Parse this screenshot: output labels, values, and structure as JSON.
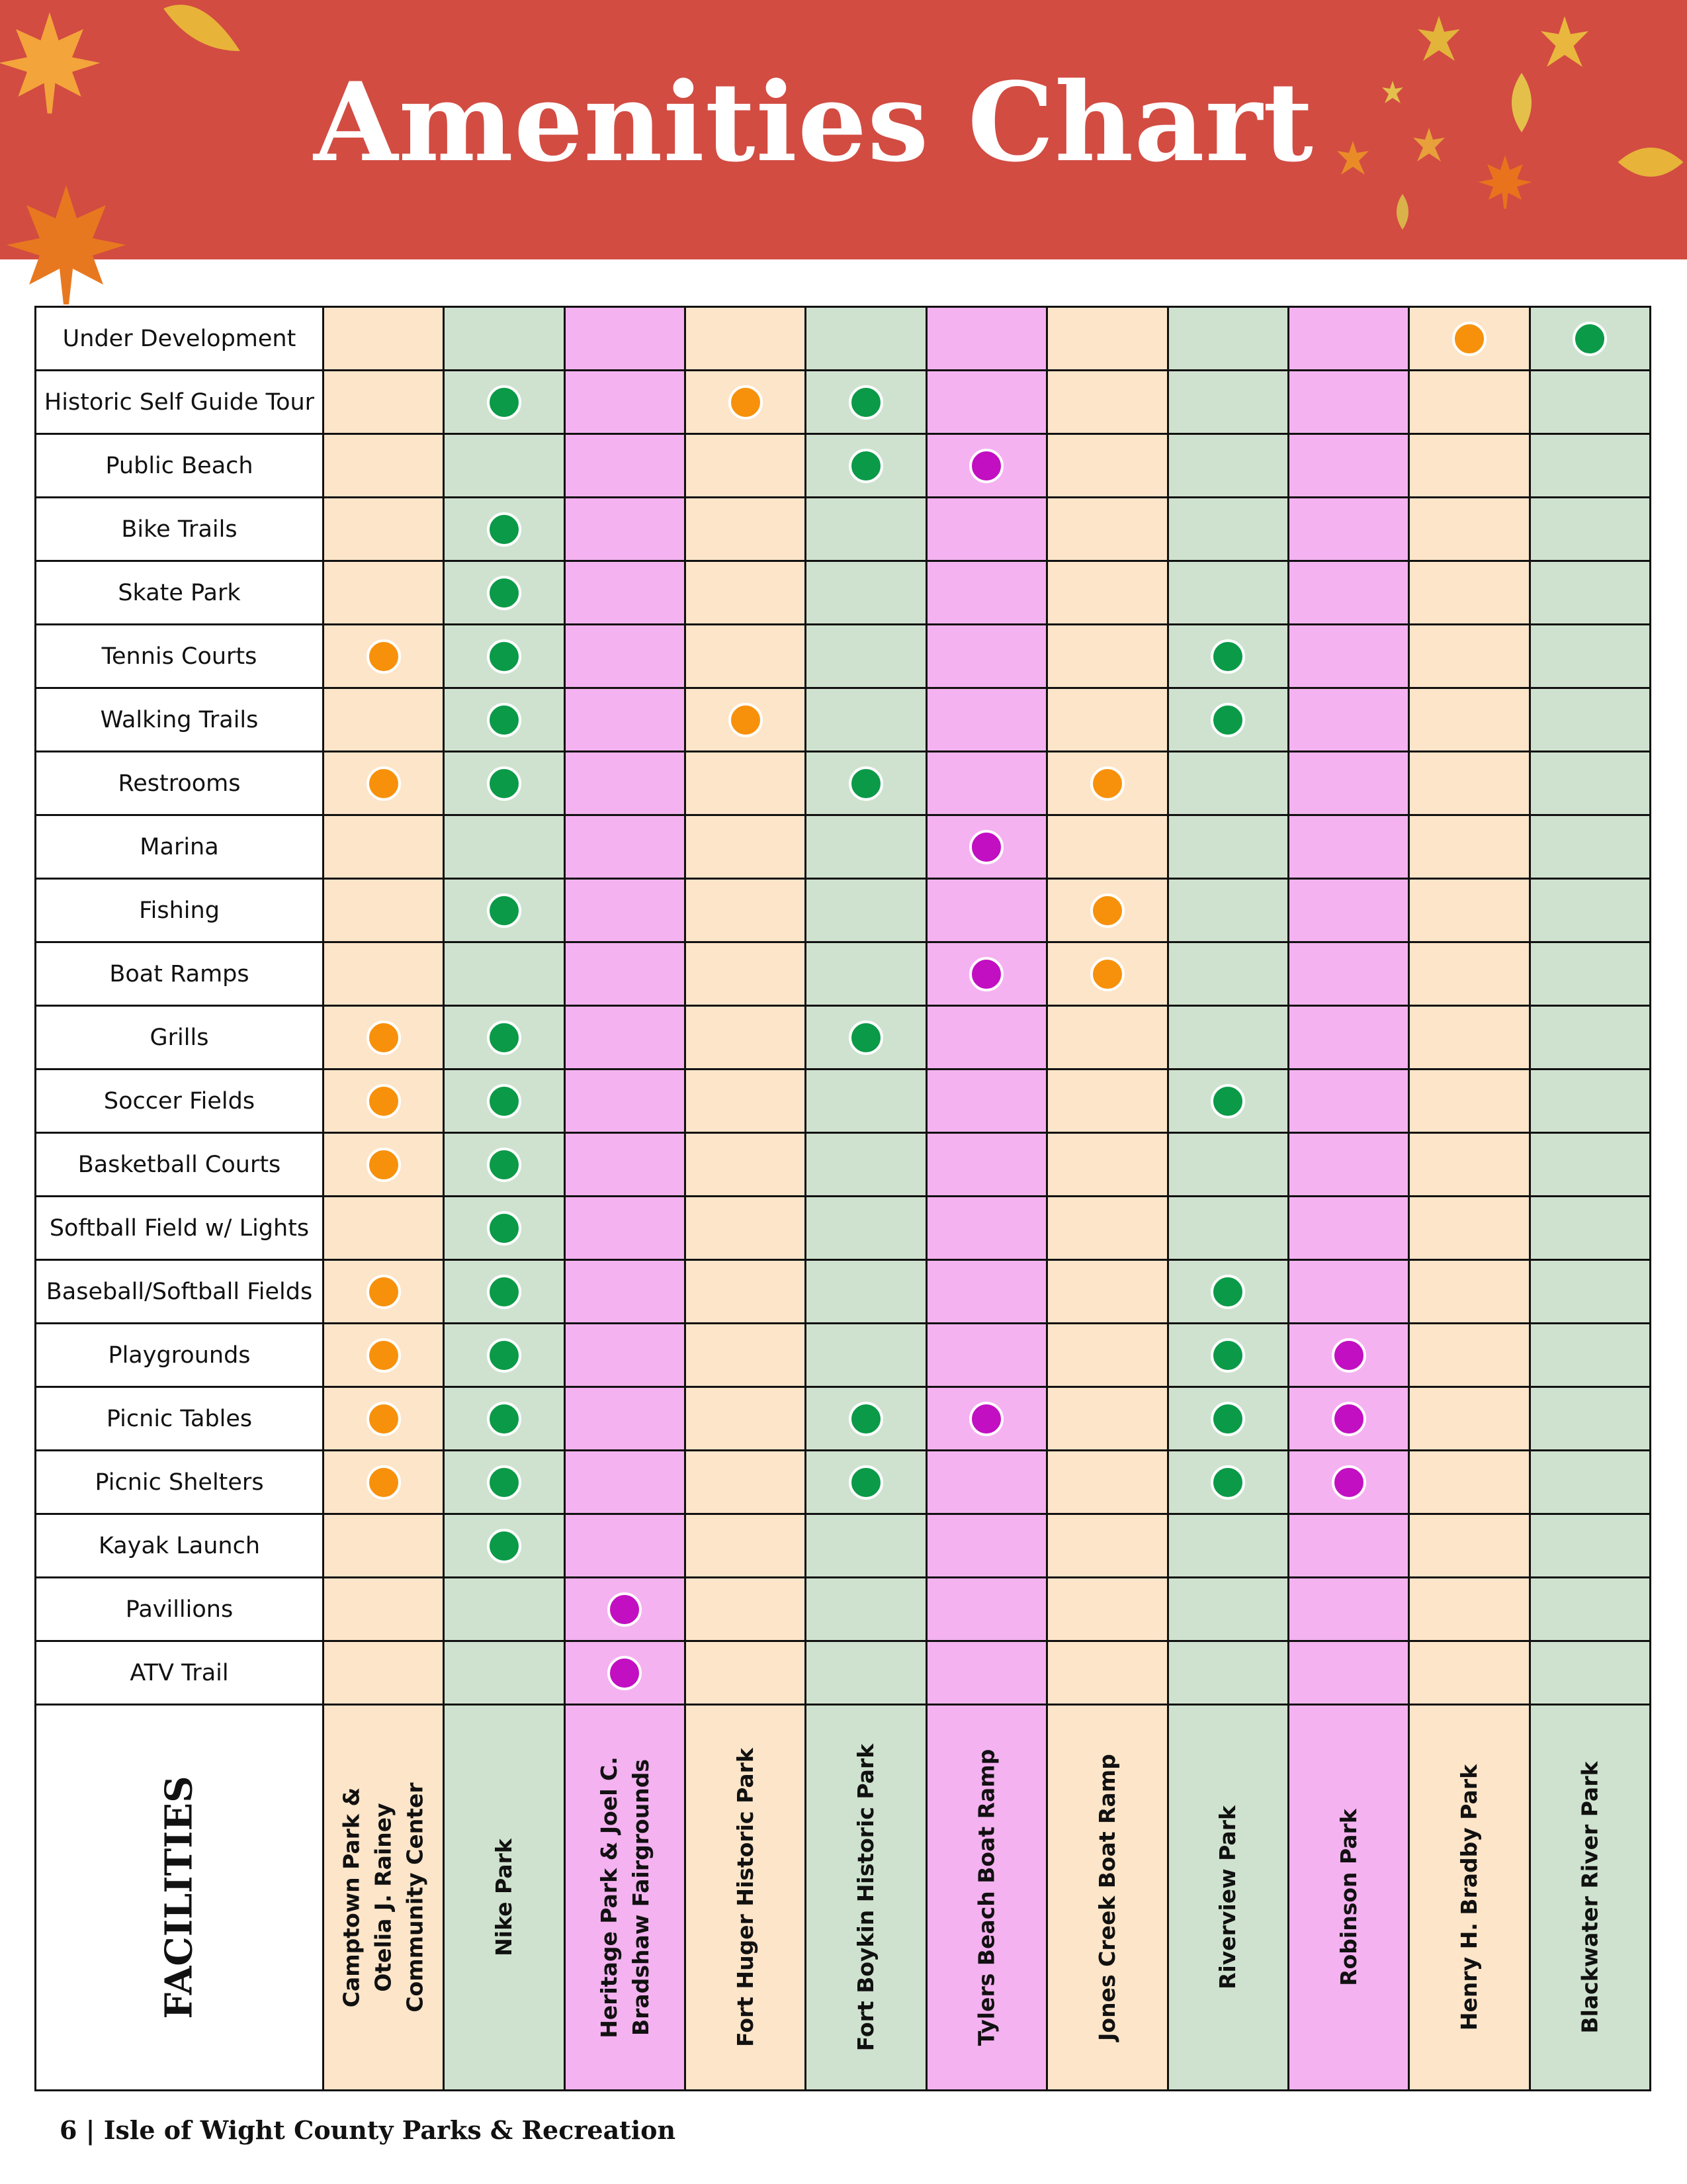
{
  "header": {
    "title": "Amenities Chart",
    "banner_color": "#d24c42"
  },
  "colors": {
    "peach": "#fde5c9",
    "green": "#cfe2cf",
    "pink": "#f4b2f0",
    "dot_orange": "#f7910b",
    "dot_green": "#0b9a48",
    "dot_magenta": "#c20fc2"
  },
  "chart_data": {
    "type": "table",
    "facilities_label": "FACILITIES",
    "parks": [
      {
        "name": "Camptown Park &\nOtelia J. Rainey\nCommunity Center",
        "color": "peach",
        "dot": "dot_orange"
      },
      {
        "name": "Nike Park",
        "color": "green",
        "dot": "dot_green"
      },
      {
        "name": "Heritage Park & Joel C.\nBradshaw Fairgrounds",
        "color": "pink",
        "dot": "dot_magenta"
      },
      {
        "name": "Fort Huger Historic Park",
        "color": "peach",
        "dot": "dot_orange"
      },
      {
        "name": "Fort Boykin Historic Park",
        "color": "green",
        "dot": "dot_green"
      },
      {
        "name": "Tylers Beach Boat Ramp",
        "color": "pink",
        "dot": "dot_magenta"
      },
      {
        "name": "Jones Creek Boat Ramp",
        "color": "peach",
        "dot": "dot_orange"
      },
      {
        "name": "Riverview Park",
        "color": "green",
        "dot": "dot_green"
      },
      {
        "name": "Robinson Park",
        "color": "pink",
        "dot": "dot_magenta"
      },
      {
        "name": "Henry H. Bradby Park",
        "color": "peach",
        "dot": "dot_orange"
      },
      {
        "name": "Blackwater River Park",
        "color": "green",
        "dot": "dot_green"
      }
    ],
    "amenities": [
      {
        "name": "Under Development",
        "available": [
          0,
          0,
          0,
          0,
          0,
          0,
          0,
          0,
          0,
          1,
          1
        ]
      },
      {
        "name": "Historic Self Guide Tour",
        "available": [
          0,
          1,
          0,
          1,
          1,
          0,
          0,
          0,
          0,
          0,
          0
        ]
      },
      {
        "name": "Public Beach",
        "available": [
          0,
          0,
          0,
          0,
          1,
          1,
          0,
          0,
          0,
          0,
          0
        ]
      },
      {
        "name": "Bike Trails",
        "available": [
          0,
          1,
          0,
          0,
          0,
          0,
          0,
          0,
          0,
          0,
          0
        ]
      },
      {
        "name": "Skate Park",
        "available": [
          0,
          1,
          0,
          0,
          0,
          0,
          0,
          0,
          0,
          0,
          0
        ]
      },
      {
        "name": "Tennis Courts",
        "available": [
          1,
          1,
          0,
          0,
          0,
          0,
          0,
          1,
          0,
          0,
          0
        ]
      },
      {
        "name": "Walking Trails",
        "available": [
          0,
          1,
          0,
          1,
          0,
          0,
          0,
          1,
          0,
          0,
          0
        ]
      },
      {
        "name": "Restrooms",
        "available": [
          1,
          1,
          0,
          0,
          1,
          0,
          1,
          0,
          0,
          0,
          0
        ]
      },
      {
        "name": "Marina",
        "available": [
          0,
          0,
          0,
          0,
          0,
          1,
          0,
          0,
          0,
          0,
          0
        ]
      },
      {
        "name": "Fishing",
        "available": [
          0,
          1,
          0,
          0,
          0,
          0,
          1,
          0,
          0,
          0,
          0
        ]
      },
      {
        "name": "Boat Ramps",
        "available": [
          0,
          0,
          0,
          0,
          0,
          1,
          1,
          0,
          0,
          0,
          0
        ]
      },
      {
        "name": "Grills",
        "available": [
          1,
          1,
          0,
          0,
          1,
          0,
          0,
          0,
          0,
          0,
          0
        ]
      },
      {
        "name": "Soccer Fields",
        "available": [
          1,
          1,
          0,
          0,
          0,
          0,
          0,
          1,
          0,
          0,
          0
        ]
      },
      {
        "name": "Basketball Courts",
        "available": [
          1,
          1,
          0,
          0,
          0,
          0,
          0,
          0,
          0,
          0,
          0
        ]
      },
      {
        "name": "Softball Field w/ Lights",
        "available": [
          0,
          1,
          0,
          0,
          0,
          0,
          0,
          0,
          0,
          0,
          0
        ]
      },
      {
        "name": "Baseball/Softball Fields",
        "available": [
          1,
          1,
          0,
          0,
          0,
          0,
          0,
          1,
          0,
          0,
          0
        ]
      },
      {
        "name": "Playgrounds",
        "available": [
          1,
          1,
          0,
          0,
          0,
          0,
          0,
          1,
          1,
          0,
          0
        ]
      },
      {
        "name": "Picnic Tables",
        "available": [
          1,
          1,
          0,
          0,
          1,
          1,
          0,
          1,
          1,
          0,
          0
        ]
      },
      {
        "name": "Picnic Shelters",
        "available": [
          1,
          1,
          0,
          0,
          1,
          0,
          0,
          1,
          1,
          0,
          0
        ]
      },
      {
        "name": "Kayak Launch",
        "available": [
          0,
          1,
          0,
          0,
          0,
          0,
          0,
          0,
          0,
          0,
          0
        ]
      },
      {
        "name": "Pavillions",
        "available": [
          0,
          0,
          1,
          0,
          0,
          0,
          0,
          0,
          0,
          0,
          0
        ]
      },
      {
        "name": "ATV Trail",
        "available": [
          0,
          0,
          1,
          0,
          0,
          0,
          0,
          0,
          0,
          0,
          0
        ]
      }
    ]
  },
  "footer": {
    "text": "6 | Isle of Wight County Parks & Recreation"
  }
}
